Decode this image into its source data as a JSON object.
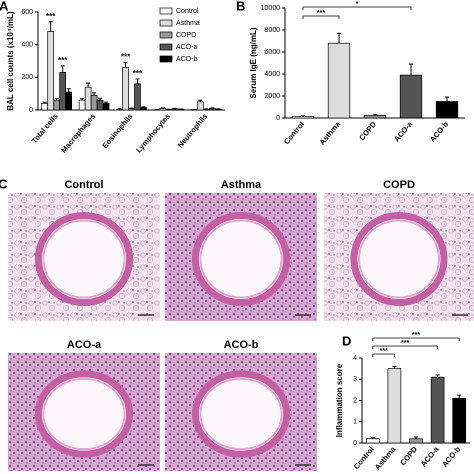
{
  "chart_data": [
    {
      "type": "bar",
      "panel": "A",
      "y_label": "BAL cell counts (x10⁴/mL)",
      "categories": [
        "Total cells",
        "Macrophages",
        "Eosinophils",
        "Lymphocytes",
        "Neutrophils"
      ],
      "series": [
        {
          "name": "Control",
          "color": "#ffffff",
          "values": [
            40,
            60,
            5,
            2,
            2
          ],
          "errors": [
            8,
            10,
            2,
            1,
            1
          ]
        },
        {
          "name": "Asthma",
          "color": "#dddddd",
          "values": [
            480,
            140,
            260,
            10,
            50
          ],
          "errors": [
            60,
            25,
            30,
            3,
            10
          ]
        },
        {
          "name": "COPD",
          "color": "#999999",
          "values": [
            60,
            90,
            8,
            3,
            5
          ],
          "errors": [
            10,
            15,
            3,
            1,
            2
          ]
        },
        {
          "name": "ACO-a",
          "color": "#555555",
          "values": [
            230,
            60,
            160,
            8,
            10
          ],
          "errors": [
            40,
            12,
            30,
            2,
            3
          ]
        },
        {
          "name": "ACO-b",
          "color": "#000000",
          "values": [
            110,
            40,
            15,
            5,
            5
          ],
          "errors": [
            20,
            8,
            4,
            1,
            2
          ]
        }
      ],
      "ylim": [
        0,
        600
      ],
      "yticks": [
        0,
        200,
        400,
        600
      ],
      "annotations": [
        {
          "text": "***"
        },
        {
          "text": "***"
        },
        {
          "text": "***"
        },
        {
          "text": "***"
        }
      ]
    },
    {
      "type": "bar",
      "panel": "B",
      "y_label": "Serum IgE (ng/mL)",
      "categories": [
        "Control",
        "Asthma",
        "COPD",
        "ACO-a",
        "ACO-b"
      ],
      "colors": [
        "#ffffff",
        "#dddddd",
        "#999999",
        "#555555",
        "#000000"
      ],
      "values": [
        150,
        6800,
        250,
        3900,
        1500
      ],
      "errors": [
        50,
        900,
        60,
        1000,
        400
      ],
      "ylim": [
        0,
        10000
      ],
      "yticks": [
        0,
        2000,
        4000,
        6000,
        8000,
        10000
      ],
      "annotations": [
        {
          "text": "***"
        },
        {
          "text": "*"
        }
      ]
    },
    {
      "type": "bar",
      "panel": "D",
      "y_label": "Inflammation score",
      "categories": [
        "Control",
        "Asthma",
        "COPD",
        "ACO-a",
        "ACO-b"
      ],
      "colors": [
        "#ffffff",
        "#dddddd",
        "#999999",
        "#555555",
        "#000000"
      ],
      "values": [
        0.2,
        3.5,
        0.2,
        3.1,
        2.1
      ],
      "errors": [
        0.05,
        0.1,
        0.08,
        0.1,
        0.15
      ],
      "ylim": [
        0,
        4
      ],
      "yticks": [
        0,
        1,
        2,
        3,
        4
      ],
      "annotations": [
        {
          "text": "***"
        },
        {
          "text": "***"
        },
        {
          "text": "***"
        }
      ]
    }
  ],
  "panel_c": {
    "label": "C",
    "titles": [
      "Control",
      "Asthma",
      "COPD",
      "ACO-a",
      "ACO-b"
    ]
  }
}
